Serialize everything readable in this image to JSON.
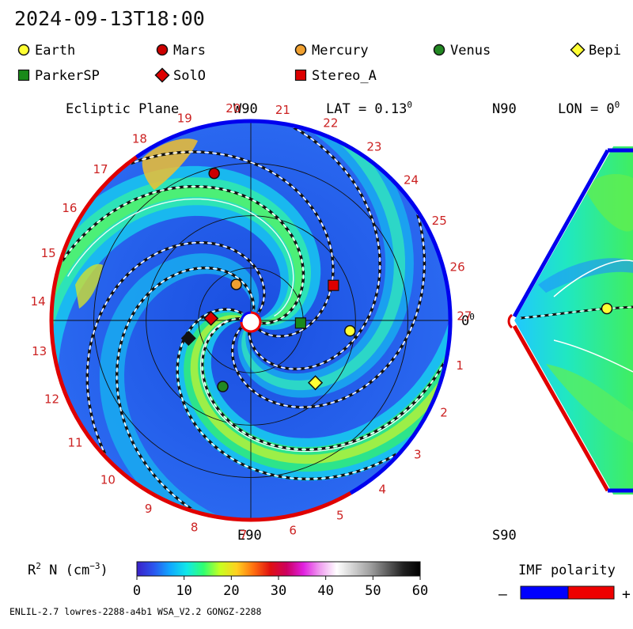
{
  "timestamp": "2024-09-13T18:00",
  "legend": {
    "row1": [
      {
        "label": "Earth",
        "shape": "circle",
        "color": "#ffff33"
      },
      {
        "label": "Mars",
        "shape": "circle",
        "color": "#cc0000"
      },
      {
        "label": "Mercury",
        "shape": "circle",
        "color": "#f0a030"
      },
      {
        "label": "Venus",
        "shape": "circle",
        "color": "#228822"
      },
      {
        "label": "Bepi",
        "shape": "diamond",
        "color": "#ffff33"
      }
    ],
    "row2": [
      {
        "label": "ParkerSP",
        "shape": "square",
        "color": "#1a8a1a"
      },
      {
        "label": "SolO",
        "shape": "diamond",
        "color": "#dd0000"
      },
      {
        "label": "Stereo_A",
        "shape": "square",
        "color": "#dd0000"
      }
    ]
  },
  "ecliptic": {
    "title": "Ecliptic Plane",
    "top_label": "W90",
    "bottom_label": "E90",
    "right_label": "0",
    "lat_prefix": "LAT = 0.13",
    "rotation_labels": [
      "1",
      "2",
      "3",
      "4",
      "5",
      "6",
      "7",
      "8",
      "9",
      "10",
      "11",
      "12",
      "13",
      "14",
      "15",
      "16",
      "17",
      "18",
      "19",
      "20",
      "21",
      "22",
      "23",
      "24",
      "25",
      "26",
      "27"
    ]
  },
  "meridional": {
    "n_label": "N90",
    "s_label": "S90",
    "lon_prefix": "LON = 0"
  },
  "colorbar": {
    "label": "R",
    "label_rest": " N (cm",
    "label_tail": ")",
    "ticks": [
      "0",
      "10",
      "20",
      "30",
      "40",
      "50",
      "60"
    ],
    "stops": [
      "#3a20c8",
      "#2a55ee",
      "#10a8ff",
      "#10e8e8",
      "#30ff70",
      "#c8ff20",
      "#ffd020",
      "#ff7010",
      "#e01010",
      "#cc0060",
      "#e020e0",
      "#f0a0f0",
      "#ffffff",
      "#d0d0d0",
      "#a0a0a0",
      "#606060",
      "#202020",
      "#000000"
    ]
  },
  "imf": {
    "title": "IMF polarity",
    "minus": "–",
    "plus": "+",
    "neg_color": "#0000ff",
    "pos_color": "#ee0000"
  },
  "footer": "ENLIL-2.7 lowres-2288-a4b1 WSA_V2.2 GONGZ-2288",
  "chart_data": [
    {
      "type": "heatmap",
      "title": "Ecliptic Plane",
      "quantity": "R² N (cm⁻³)",
      "color_range": [
        0,
        60
      ],
      "bodies": [
        {
          "name": "Earth",
          "angle_deg": -6,
          "r_au": 1.0
        },
        {
          "name": "Mars",
          "angle_deg": 104,
          "r_au": 1.52
        },
        {
          "name": "Mercury",
          "angle_deg": 112,
          "r_au": 0.39
        },
        {
          "name": "Venus",
          "angle_deg": -113,
          "r_au": 0.72
        },
        {
          "name": "Bepi",
          "angle_deg": -44,
          "r_au": 0.9
        },
        {
          "name": "ParkerSP",
          "angle_deg": -3,
          "r_au": 0.5
        },
        {
          "name": "SolO",
          "angle_deg": 177,
          "r_au": 0.4
        },
        {
          "name": "Stereo_A",
          "angle_deg": 23,
          "r_au": 0.9
        },
        {
          "name": "STA-like",
          "angle_deg": 196,
          "r_au": 0.65
        }
      ]
    },
    {
      "type": "heatmap",
      "title": "Meridional",
      "quantity": "R² N (cm⁻³)",
      "color_range": [
        0,
        60
      ]
    }
  ]
}
